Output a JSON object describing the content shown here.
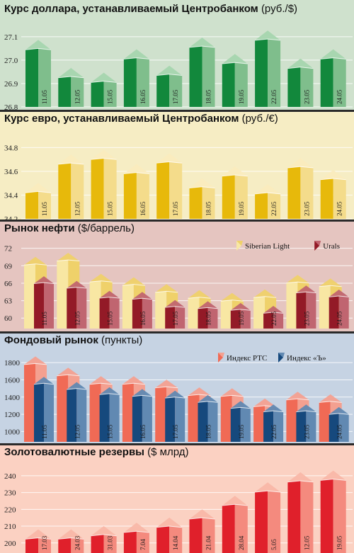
{
  "chart_data": [
    {
      "type": "bar",
      "title": "Курс доллара, устанавливаемый Центробанком",
      "unit": "(руб./$)",
      "categories": [
        "11.05",
        "12.05",
        "15.05",
        "16.05",
        "17.05",
        "18.05",
        "19.05",
        "22.05",
        "23.05",
        "24.05"
      ],
      "series": [
        {
          "values": [
            27.05,
            26.93,
            26.91,
            27.01,
            26.94,
            27.06,
            26.99,
            27.09,
            26.97,
            27.01
          ]
        }
      ],
      "yticks": [
        "26.8",
        "26.9",
        "27.0",
        "27.1"
      ],
      "ylim": [
        26.8,
        27.16
      ],
      "colors": {
        "background": "#cfe1cd",
        "front": "#12883c",
        "side": "#7fbe8c",
        "top": "#a5d5ae"
      }
    },
    {
      "type": "bar",
      "title": "Курс евро, устанавливаемый Центробанком",
      "unit": "(руб./€)",
      "categories": [
        "11.05",
        "12.05",
        "15.05",
        "16.05",
        "17.05",
        "18.05",
        "19.05",
        "22.05",
        "23.05",
        "24.05"
      ],
      "series": [
        {
          "values": [
            34.43,
            34.67,
            34.71,
            34.59,
            34.68,
            34.47,
            34.57,
            34.42,
            34.64,
            34.54
          ]
        }
      ],
      "yticks": [
        "34.2",
        "34.4",
        "34.6",
        "34.8"
      ],
      "ylim": [
        34.2,
        34.88
      ],
      "colors": {
        "background": "#f6edc4",
        "front": "#e7b90b",
        "side": "#f4dc8b",
        "top": "#faecbe"
      }
    },
    {
      "type": "bar",
      "title": "Рынок нефти",
      "unit": "($/баррель)",
      "categories": [
        "11.05",
        "12.05",
        "15.05",
        "16.05",
        "17.05",
        "18.05",
        "19.05",
        "22.05",
        "23.05",
        "24.05"
      ],
      "series": [
        {
          "name": "Siberian Light",
          "values": [
            69.3,
            70.0,
            66.4,
            65.8,
            64.6,
            63.6,
            63.1,
            63.7,
            66.2,
            65.6
          ]
        },
        {
          "name": "Urals",
          "values": [
            66.1,
            65.3,
            63.6,
            63.4,
            62.0,
            61.8,
            61.5,
            61.0,
            64.5,
            63.8
          ]
        }
      ],
      "yticks": [
        "60",
        "63",
        "66",
        "69",
        "72"
      ],
      "ylim": [
        58.2,
        73.3
      ],
      "legend": "top-right",
      "colors": {
        "background": "#e5c5c0",
        "front1": "#f8e7a3",
        "side1": "#efd16a",
        "front2": "#931a27",
        "side2": "#c06570"
      }
    },
    {
      "type": "bar",
      "title": "Фондовый рынок",
      "unit": "(пункты)",
      "categories": [
        "11.05",
        "12.05",
        "15.05",
        "16.05",
        "17.05",
        "18.05",
        "19.05",
        "22.05",
        "23.05",
        "24.05"
      ],
      "series": [
        {
          "name": "Индекс РТС",
          "values": [
            1790,
            1660,
            1560,
            1560,
            1520,
            1430,
            1420,
            1300,
            1380,
            1350
          ]
        },
        {
          "name": "Индекс «Ъ»",
          "values": [
            1560,
            1500,
            1440,
            1420,
            1400,
            1350,
            1280,
            1240,
            1240,
            1210
          ]
        }
      ],
      "yticks": [
        "1000",
        "1200",
        "1400",
        "1600",
        "1800"
      ],
      "ylim": [
        880,
        1900
      ],
      "legend": "top-right",
      "colors": {
        "background": "#c6d3e3",
        "front1": "#f06a55",
        "side1": "#f4a090",
        "front2": "#16497d",
        "side2": "#6189b2"
      }
    },
    {
      "type": "bar",
      "title": "Золотовалютные резервы",
      "unit": "($ млрд)",
      "categories": [
        "17.03",
        "24.03",
        "31.03",
        "7.04",
        "14.04",
        "21.04",
        "28.04",
        "5.05",
        "12.05",
        "19.05"
      ],
      "series": [
        {
          "values": [
            203,
            203,
            205,
            207,
            210,
            215,
            223,
            231,
            237,
            238
          ]
        }
      ],
      "yticks": [
        "200",
        "210",
        "220",
        "230",
        "240"
      ],
      "ylim": [
        194,
        245
      ],
      "colors": {
        "background": "#fbd1c2",
        "front": "#e0202b",
        "side": "#f48a7e",
        "top": "#f9b7a8"
      }
    }
  ]
}
